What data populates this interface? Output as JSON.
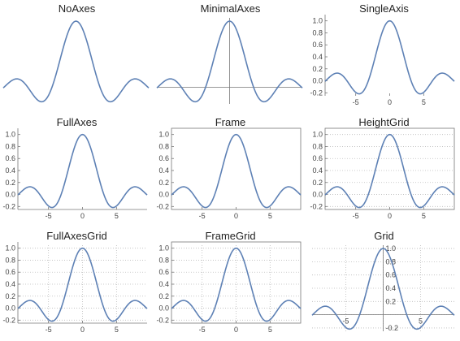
{
  "chart_data": [
    {
      "type": "line",
      "title": "NoAxes",
      "style": "none",
      "xlim": [
        -9.5,
        9.5
      ],
      "ylim": [
        -0.25,
        1.05
      ],
      "x_ticks": [],
      "y_ticks": [],
      "series": [
        {
          "function": "sin(x)/x",
          "x": [
            -9,
            -8,
            -7,
            -6,
            -5,
            -4,
            -3,
            -2,
            -1,
            0,
            1,
            2,
            3,
            4,
            5,
            6,
            7,
            8,
            9
          ],
          "values": [
            0.046,
            0.124,
            0.094,
            -0.047,
            -0.192,
            -0.189,
            0.047,
            0.455,
            0.841,
            1,
            0.841,
            0.455,
            0.047,
            -0.189,
            -0.192,
            -0.047,
            0.094,
            0.124,
            0.046
          ]
        }
      ]
    },
    {
      "type": "line",
      "title": "MinimalAxes",
      "style": "minimal",
      "xlim": [
        -9.5,
        9.5
      ],
      "ylim": [
        -0.25,
        1.05
      ],
      "x_ticks": [],
      "y_ticks": [],
      "series": [
        {
          "function": "sin(x)/x"
        }
      ]
    },
    {
      "type": "line",
      "title": "SingleAxis",
      "style": "single",
      "xlim": [
        -9.5,
        9.5
      ],
      "ylim": [
        -0.25,
        1.05
      ],
      "x_ticks": [
        "-5",
        "0",
        "5"
      ],
      "y_ticks": [
        "-0.2",
        "0.0",
        "0.2",
        "0.4",
        "0.6",
        "0.8",
        "1.0"
      ],
      "series": [
        {
          "function": "sin(x)/x"
        }
      ]
    },
    {
      "type": "line",
      "title": "FullAxes",
      "style": "full",
      "xlim": [
        -9.5,
        9.5
      ],
      "ylim": [
        -0.25,
        1.05
      ],
      "x_ticks": [
        "-5",
        "0",
        "5"
      ],
      "y_ticks": [
        "-0.2",
        "0.0",
        "0.2",
        "0.4",
        "0.6",
        "0.8",
        "1.0"
      ],
      "series": [
        {
          "function": "sin(x)/x"
        }
      ]
    },
    {
      "type": "line",
      "title": "Frame",
      "style": "frame",
      "xlim": [
        -9.5,
        9.5
      ],
      "ylim": [
        -0.25,
        1.05
      ],
      "x_ticks": [
        "-5",
        "0",
        "5"
      ],
      "y_ticks": [
        "-0.2",
        "0.0",
        "0.2",
        "0.4",
        "0.6",
        "0.8",
        "1.0"
      ],
      "series": [
        {
          "function": "sin(x)/x"
        }
      ]
    },
    {
      "type": "line",
      "title": "HeightGrid",
      "style": "heightgrid",
      "xlim": [
        -9.5,
        9.5
      ],
      "ylim": [
        -0.25,
        1.05
      ],
      "x_ticks": [
        "-5",
        "0",
        "5"
      ],
      "y_ticks": [
        "-0.2",
        "0.0",
        "0.2",
        "0.4",
        "0.6",
        "0.8",
        "1.0"
      ],
      "grid": "horizontal",
      "series": [
        {
          "function": "sin(x)/x"
        }
      ]
    },
    {
      "type": "line",
      "title": "FullAxesGrid",
      "style": "fullgrid",
      "xlim": [
        -9.5,
        9.5
      ],
      "ylim": [
        -0.25,
        1.05
      ],
      "x_ticks": [
        "-5",
        "0",
        "5"
      ],
      "y_ticks": [
        "-0.2",
        "0.0",
        "0.2",
        "0.4",
        "0.6",
        "0.8",
        "1.0"
      ],
      "grid": "both",
      "series": [
        {
          "function": "sin(x)/x"
        }
      ]
    },
    {
      "type": "line",
      "title": "FrameGrid",
      "style": "framegrid",
      "xlim": [
        -9.5,
        9.5
      ],
      "ylim": [
        -0.25,
        1.05
      ],
      "x_ticks": [
        "-5",
        "0",
        "5"
      ],
      "y_ticks": [
        "-0.2",
        "0.0",
        "0.2",
        "0.4",
        "0.6",
        "0.8",
        "1.0"
      ],
      "grid": "both",
      "series": [
        {
          "function": "sin(x)/x"
        }
      ]
    },
    {
      "type": "line",
      "title": "Grid",
      "style": "grid",
      "xlim": [
        -9.5,
        9.5
      ],
      "ylim": [
        -0.25,
        1.05
      ],
      "x_ticks": [
        "-5",
        "5"
      ],
      "y_ticks": [
        "-0.2",
        "0.2",
        "0.4",
        "0.6",
        "0.8",
        "1.0"
      ],
      "grid": "both",
      "series": [
        {
          "function": "sin(x)/x"
        }
      ]
    }
  ],
  "colors": {
    "curve": "#5e81b5",
    "axis": "#777777",
    "grid": "#bbbbbb",
    "label": "#444444"
  }
}
